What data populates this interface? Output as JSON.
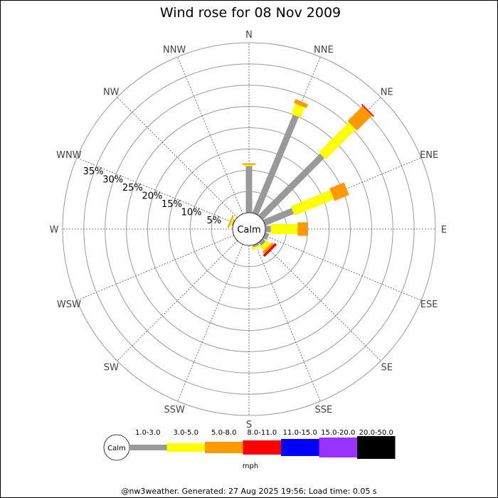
{
  "chart_data": {
    "type": "windrose",
    "title": "Wind rose for 08 Nov 2009",
    "directions": [
      "N",
      "NNE",
      "NE",
      "ENE",
      "E",
      "ESE",
      "SE",
      "SSE",
      "S",
      "SSW",
      "SW",
      "WSW",
      "W",
      "WNW",
      "NW",
      "NNW"
    ],
    "radial_ticks": [
      "5%",
      "10%",
      "15%",
      "20%",
      "25%",
      "30%",
      "35%"
    ],
    "radial_values": [
      5,
      10,
      15,
      20,
      25,
      30,
      35
    ],
    "rmax_percent": 40,
    "calm_label": "Calm",
    "speed_bins": [
      {
        "label": "1.0-3.0",
        "color": "#999999"
      },
      {
        "label": "3.0-5.0",
        "color": "#ffff00"
      },
      {
        "label": "5.0-8.0",
        "color": "#ff9900"
      },
      {
        "label": "8.0-11.0",
        "color": "#ff0000"
      },
      {
        "label": "11.0-15.0",
        "color": "#0000ff"
      },
      {
        "label": "15.0-20.0",
        "color": "#9933ff"
      },
      {
        "label": "20.0-50.0",
        "color": "#000000"
      }
    ],
    "unit": "mph",
    "series": [
      {
        "direction": "N",
        "values": [
          11.0,
          0.3,
          0.3,
          0,
          0,
          0,
          0
        ]
      },
      {
        "direction": "NNE",
        "values": [
          25.0,
          2.6,
          1.0,
          0,
          0,
          0,
          0
        ]
      },
      {
        "direction": "NE",
        "values": [
          20.5,
          10.0,
          5.0,
          0.3,
          0,
          0,
          0
        ]
      },
      {
        "direction": "ENE",
        "values": [
          7.3,
          10.0,
          3.7,
          0,
          0,
          0,
          0
        ]
      },
      {
        "direction": "E",
        "values": [
          1.3,
          6.3,
          2.3,
          0,
          0,
          0,
          0
        ]
      },
      {
        "direction": "ESE",
        "values": [
          1.0,
          0,
          0,
          0,
          0,
          0,
          0
        ]
      },
      {
        "direction": "SE",
        "values": [
          1.0,
          1.2,
          0.6,
          0.6,
          0,
          0,
          0
        ]
      },
      {
        "direction": "SSE",
        "values": [
          0.5,
          0.5,
          0,
          0,
          0,
          0,
          0
        ]
      },
      {
        "direction": "S",
        "values": [
          0,
          0,
          0,
          0,
          0,
          0,
          0
        ]
      },
      {
        "direction": "SSW",
        "values": [
          0,
          0,
          0,
          0,
          0,
          0,
          0
        ]
      },
      {
        "direction": "SW",
        "values": [
          0,
          0,
          0,
          0,
          0,
          0,
          0
        ]
      },
      {
        "direction": "WSW",
        "values": [
          0,
          0,
          0,
          0,
          0,
          0,
          0
        ]
      },
      {
        "direction": "W",
        "values": [
          0,
          0,
          0,
          0,
          0,
          0,
          0
        ]
      },
      {
        "direction": "WNW",
        "values": [
          0.3,
          0.4,
          0.3,
          0,
          0,
          0,
          0
        ]
      },
      {
        "direction": "NW",
        "values": [
          0,
          0,
          0,
          0,
          0,
          0,
          0
        ]
      },
      {
        "direction": "NNW",
        "values": [
          0,
          0,
          0,
          0,
          0,
          0,
          0
        ]
      }
    ]
  },
  "footer": "@nw3weather. Generated: 27 Aug 2025 19:56; Load time: 0.05 s"
}
